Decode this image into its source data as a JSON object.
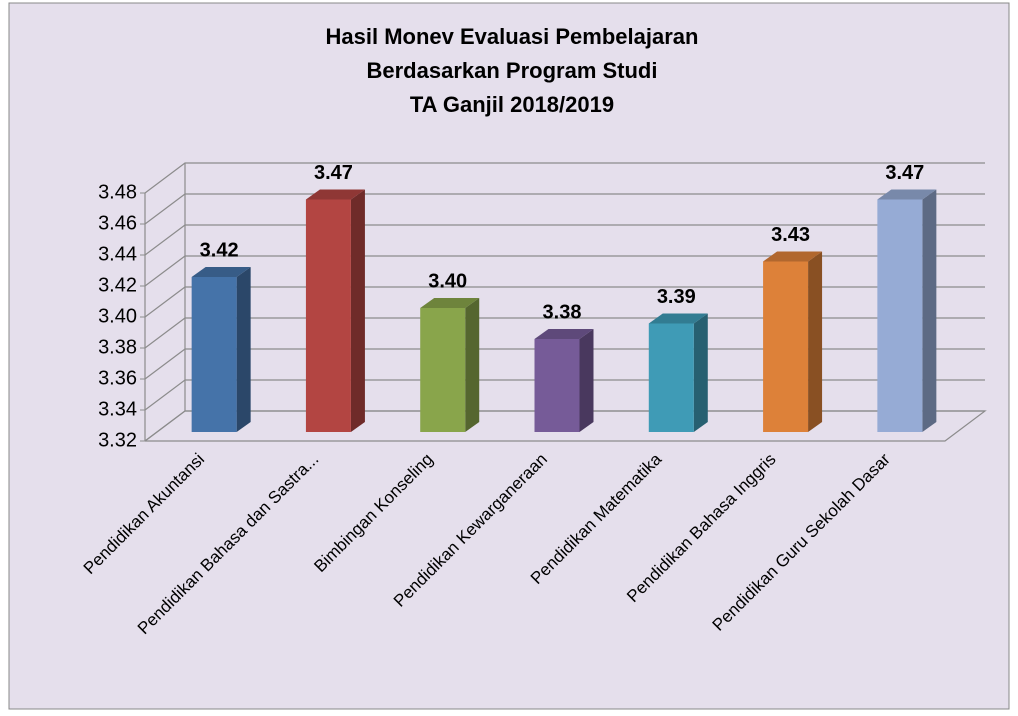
{
  "chart_data": {
    "type": "bar3d",
    "title": [
      "Hasil Monev Evaluasi Pembelajaran",
      "Berdasarkan Program Studi",
      "TA Ganjil 2018/2019"
    ],
    "categories": [
      "Pendidikan Akuntansi",
      "Pendidikan Bahasa dan Sastra...",
      "Bimbingan Konseling",
      "Pendidikan Kewarganeraan",
      "Pendidikan Matematika",
      "Pendidikan Bahasa Inggris",
      "Pendidikan Guru Sekolah Dasar"
    ],
    "values": [
      3.42,
      3.47,
      3.4,
      3.38,
      3.39,
      3.43,
      3.47
    ],
    "value_labels": [
      "3.42",
      "3.47",
      "3.40",
      "3.38",
      "3.39",
      "3.43",
      "3.47"
    ],
    "colors": [
      "#4573a9",
      "#b34542",
      "#89a54b",
      "#765b98",
      "#3f9bb6",
      "#dd8139",
      "#96abd5"
    ],
    "ylim": [
      3.32,
      3.48
    ],
    "yticks": [
      3.32,
      3.34,
      3.36,
      3.38,
      {
        "value": 3.4,
        "label": "3.40"
      },
      3.42,
      3.44,
      3.46,
      3.48
    ],
    "grid": true
  }
}
